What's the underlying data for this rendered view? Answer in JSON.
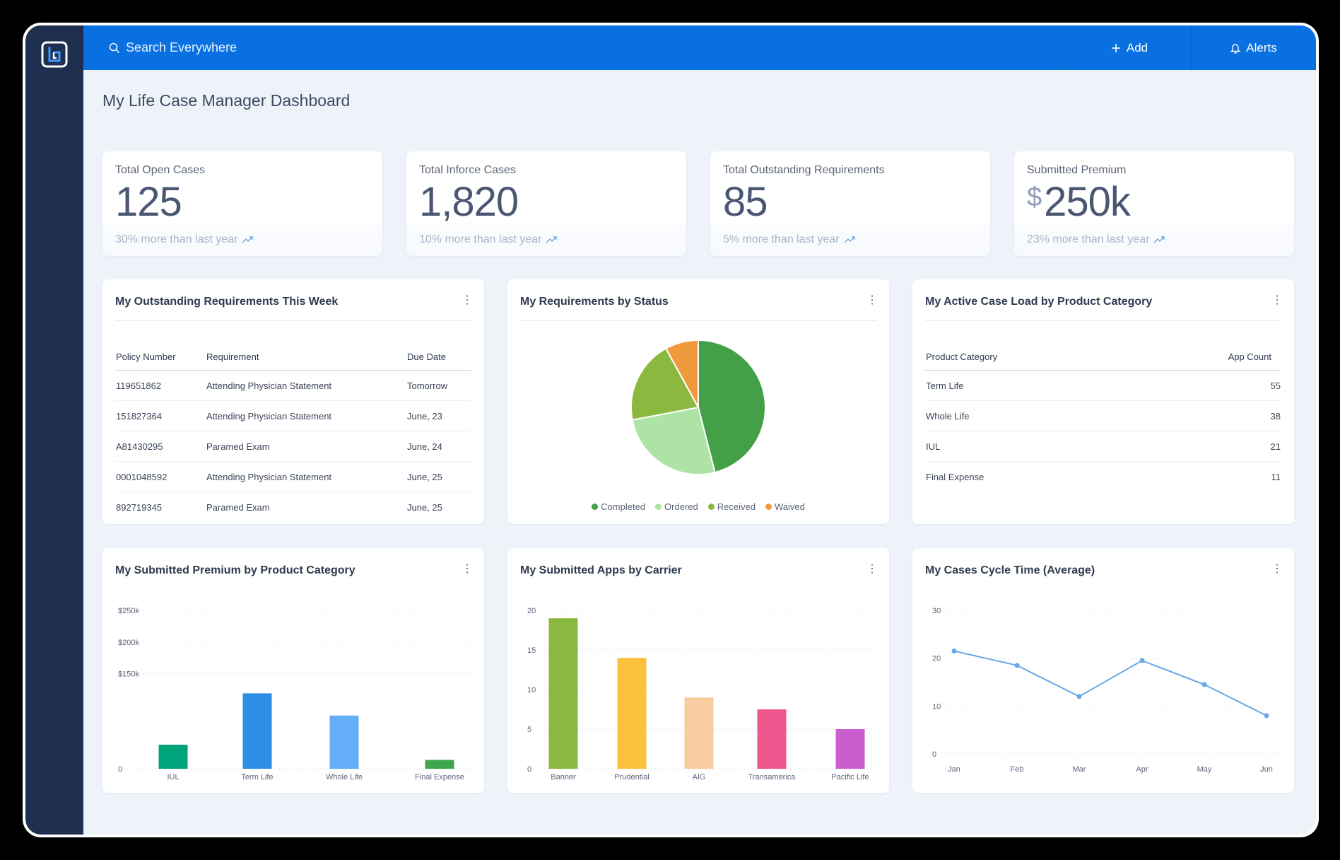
{
  "app": {
    "search_placeholder": "Search Everywhere",
    "add_label": "Add",
    "alerts_label": "Alerts",
    "brand_color": "#0870e0",
    "sidebar_color": "#1e2f50"
  },
  "page": {
    "title": "My Life Case Manager Dashboard"
  },
  "kpis": [
    {
      "label": "Total Open Cases",
      "value": "125",
      "currency": "",
      "trend": "30% more than last year"
    },
    {
      "label": "Total Inforce Cases",
      "value": "1,820",
      "currency": "",
      "trend": "10% more than last year"
    },
    {
      "label": "Total Outstanding Requirements",
      "value": "85",
      "currency": "",
      "trend": "5% more than last year"
    },
    {
      "label": "Submitted Premium",
      "value": "250k",
      "currency": "$",
      "trend": "23% more than last year"
    }
  ],
  "requirements_card": {
    "title": "My Outstanding Requirements This Week",
    "columns": [
      "Policy Number",
      "Requirement",
      "Due Date"
    ],
    "rows": [
      [
        "119651862",
        "Attending Physician Statement",
        "Tomorrow"
      ],
      [
        "151827364",
        "Attending Physician Statement",
        "June, 23"
      ],
      [
        "A81430295",
        "Paramed Exam",
        "June, 24"
      ],
      [
        "0001048592",
        "Attending Physician Statement",
        "June, 25"
      ],
      [
        "892719345",
        "Paramed Exam",
        "June, 25"
      ]
    ]
  },
  "status_card": {
    "title": "My Requirements by Status"
  },
  "caseload_card": {
    "title": "My Active Case Load by Product Category",
    "columns": [
      "Product Category",
      "App Count"
    ],
    "rows": [
      [
        "Term Life",
        "55"
      ],
      [
        "Whole Life",
        "38"
      ],
      [
        "IUL",
        "21"
      ],
      [
        "Final Expense",
        "11"
      ]
    ]
  },
  "premium_card": {
    "title": "My Submitted Premium by Product Category"
  },
  "carrier_card": {
    "title": "My Submitted Apps by Carrier"
  },
  "cycle_card": {
    "title": "My Cases Cycle Time (Average)"
  },
  "chart_data": [
    {
      "type": "pie",
      "title": "My Requirements by Status",
      "categories": [
        "Completed",
        "Ordered",
        "Received",
        "Waived"
      ],
      "values": [
        46,
        26,
        20,
        8
      ],
      "colors": [
        "#43a047",
        "#aee3a6",
        "#8bb83f",
        "#f09a3e"
      ]
    },
    {
      "type": "bar",
      "title": "My Submitted Premium by Product Category",
      "categories": [
        "IUL",
        "Term Life",
        "Whole Life",
        "Final Expense"
      ],
      "values": [
        38000,
        119000,
        84000,
        14000
      ],
      "colors": [
        "#00a37a",
        "#2d8ee8",
        "#64adf7",
        "#3fa64f"
      ],
      "yticks": [
        0,
        150000,
        200000,
        250000
      ],
      "ytick_labels": [
        "0",
        "$150k",
        "$200k",
        "$250k"
      ],
      "ylim": [
        0,
        250000
      ]
    },
    {
      "type": "bar",
      "title": "My Submitted Apps by Carrier",
      "categories": [
        "Banner",
        "Prudential",
        "AIG",
        "Transamerica",
        "Pacific Life"
      ],
      "values": [
        19,
        14,
        9,
        7.5,
        5
      ],
      "colors": [
        "#8bb83f",
        "#fbc13a",
        "#f8cc9f",
        "#f0578f",
        "#c95fcf"
      ],
      "yticks": [
        0,
        5,
        10,
        15,
        20
      ],
      "ytick_labels": [
        "0",
        "5",
        "10",
        "15",
        "20"
      ],
      "ylim": [
        0,
        20
      ]
    },
    {
      "type": "line",
      "title": "My Cases Cycle Time (Average)",
      "categories": [
        "Jan",
        "Feb",
        "Mar",
        "Apr",
        "May",
        "Jun"
      ],
      "values": [
        21.5,
        18.5,
        12,
        19.5,
        14.5,
        8
      ],
      "color": "#66a8e8",
      "yticks": [
        0,
        10,
        20,
        30
      ],
      "ytick_labels": [
        "0",
        "10",
        "20",
        "30"
      ],
      "ylim": [
        0,
        30
      ]
    }
  ]
}
